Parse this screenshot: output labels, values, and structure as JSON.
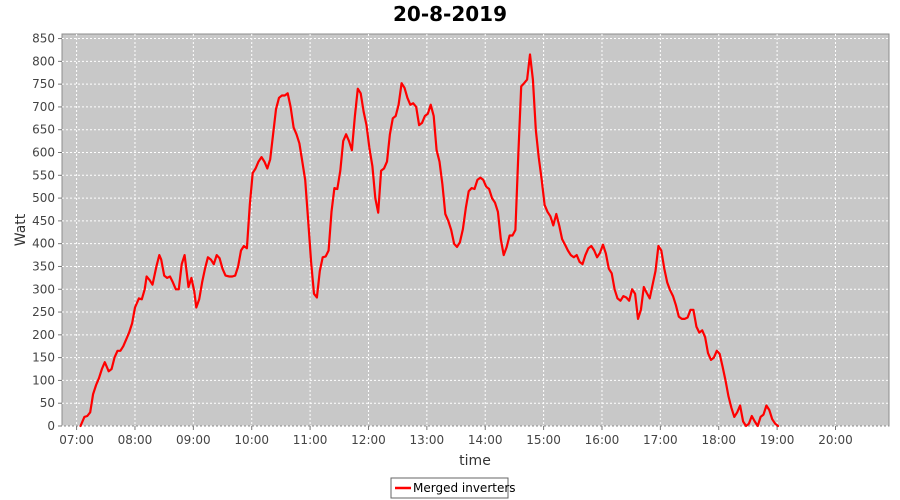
{
  "chart_data": {
    "type": "line",
    "title": "20-8-2019",
    "xlabel": "time",
    "ylabel": "Watt",
    "x_ticks": [
      "07:00",
      "08:00",
      "09:00",
      "10:00",
      "11:00",
      "12:00",
      "13:00",
      "14:00",
      "15:00",
      "16:00",
      "17:00",
      "18:00",
      "19:00",
      "20:00"
    ],
    "y_ticks": [
      0,
      50,
      100,
      150,
      200,
      250,
      300,
      350,
      400,
      450,
      500,
      550,
      600,
      650,
      700,
      750,
      800,
      850
    ],
    "xlim": [
      "06:45",
      "20:55"
    ],
    "ylim": [
      0,
      860
    ],
    "grid": true,
    "legend_position": "bottom-center",
    "background_color": "#c8c8c8",
    "series": [
      {
        "name": "Merged inverters",
        "color": "#ff0000",
        "points": [
          [
            "07:04",
            0
          ],
          [
            "07:08",
            20
          ],
          [
            "07:11",
            22
          ],
          [
            "07:14",
            30
          ],
          [
            "07:17",
            70
          ],
          [
            "07:20",
            90
          ],
          [
            "07:23",
            105
          ],
          [
            "07:26",
            125
          ],
          [
            "07:29",
            140
          ],
          [
            "07:33",
            120
          ],
          [
            "07:36",
            125
          ],
          [
            "07:39",
            150
          ],
          [
            "07:42",
            165
          ],
          [
            "07:45",
            165
          ],
          [
            "07:48",
            175
          ],
          [
            "07:51",
            190
          ],
          [
            "07:54",
            205
          ],
          [
            "07:57",
            225
          ],
          [
            "08:00",
            260
          ],
          [
            "08:04",
            280
          ],
          [
            "08:07",
            278
          ],
          [
            "08:10",
            300
          ],
          [
            "08:12",
            328
          ],
          [
            "08:15",
            320
          ],
          [
            "08:18",
            310
          ],
          [
            "08:22",
            350
          ],
          [
            "08:25",
            375
          ],
          [
            "08:27",
            365
          ],
          [
            "08:30",
            330
          ],
          [
            "08:33",
            325
          ],
          [
            "08:36",
            328
          ],
          [
            "08:39",
            315
          ],
          [
            "08:42",
            300
          ],
          [
            "08:45",
            300
          ],
          [
            "08:48",
            355
          ],
          [
            "08:51",
            375
          ],
          [
            "08:55",
            305
          ],
          [
            "08:58",
            325
          ],
          [
            "09:01",
            295
          ],
          [
            "09:03",
            260
          ],
          [
            "09:06",
            278
          ],
          [
            "09:09",
            315
          ],
          [
            "09:12",
            345
          ],
          [
            "09:15",
            370
          ],
          [
            "09:18",
            365
          ],
          [
            "09:21",
            355
          ],
          [
            "09:24",
            375
          ],
          [
            "09:27",
            368
          ],
          [
            "09:30",
            345
          ],
          [
            "09:33",
            330
          ],
          [
            "09:37",
            328
          ],
          [
            "09:40",
            328
          ],
          [
            "09:43",
            330
          ],
          [
            "09:46",
            350
          ],
          [
            "09:49",
            385
          ],
          [
            "09:52",
            395
          ],
          [
            "09:55",
            390
          ],
          [
            "09:58",
            485
          ],
          [
            "10:01",
            555
          ],
          [
            "10:04",
            565
          ],
          [
            "10:07",
            580
          ],
          [
            "10:10",
            590
          ],
          [
            "10:13",
            580
          ],
          [
            "10:16",
            565
          ],
          [
            "10:19",
            585
          ],
          [
            "10:22",
            640
          ],
          [
            "10:25",
            695
          ],
          [
            "10:28",
            720
          ],
          [
            "10:31",
            725
          ],
          [
            "10:34",
            725
          ],
          [
            "10:37",
            730
          ],
          [
            "10:40",
            700
          ],
          [
            "10:43",
            655
          ],
          [
            "10:46",
            640
          ],
          [
            "10:49",
            620
          ],
          [
            "10:52",
            580
          ],
          [
            "10:55",
            540
          ],
          [
            "10:58",
            450
          ],
          [
            "11:01",
            360
          ],
          [
            "11:04",
            290
          ],
          [
            "11:07",
            282
          ],
          [
            "11:10",
            340
          ],
          [
            "11:13",
            370
          ],
          [
            "11:16",
            372
          ],
          [
            "11:19",
            385
          ],
          [
            "11:22",
            470
          ],
          [
            "11:25",
            522
          ],
          [
            "11:28",
            520
          ],
          [
            "11:31",
            560
          ],
          [
            "11:34",
            625
          ],
          [
            "11:37",
            640
          ],
          [
            "11:40",
            625
          ],
          [
            "11:43",
            605
          ],
          [
            "11:46",
            680
          ],
          [
            "11:49",
            740
          ],
          [
            "11:52",
            730
          ],
          [
            "11:55",
            690
          ],
          [
            "11:58",
            660
          ],
          [
            "12:01",
            610
          ],
          [
            "12:04",
            570
          ],
          [
            "12:07",
            500
          ],
          [
            "12:10",
            468
          ],
          [
            "12:13",
            560
          ],
          [
            "12:16",
            565
          ],
          [
            "12:19",
            580
          ],
          [
            "12:22",
            640
          ],
          [
            "12:25",
            675
          ],
          [
            "12:28",
            680
          ],
          [
            "12:31",
            705
          ],
          [
            "12:34",
            752
          ],
          [
            "12:37",
            742
          ],
          [
            "12:40",
            720
          ],
          [
            "12:43",
            705
          ],
          [
            "12:46",
            708
          ],
          [
            "12:49",
            700
          ],
          [
            "12:52",
            660
          ],
          [
            "12:55",
            665
          ],
          [
            "12:58",
            680
          ],
          [
            "13:01",
            685
          ],
          [
            "13:04",
            705
          ],
          [
            "13:07",
            680
          ],
          [
            "13:10",
            605
          ],
          [
            "13:13",
            580
          ],
          [
            "13:16",
            530
          ],
          [
            "13:19",
            465
          ],
          [
            "13:22",
            450
          ],
          [
            "13:25",
            430
          ],
          [
            "13:28",
            400
          ],
          [
            "13:31",
            393
          ],
          [
            "13:34",
            403
          ],
          [
            "13:37",
            432
          ],
          [
            "13:40",
            478
          ],
          [
            "13:43",
            515
          ],
          [
            "13:46",
            522
          ],
          [
            "13:49",
            520
          ],
          [
            "13:52",
            540
          ],
          [
            "13:55",
            545
          ],
          [
            "13:58",
            540
          ],
          [
            "14:01",
            525
          ],
          [
            "14:04",
            520
          ],
          [
            "14:07",
            500
          ],
          [
            "14:10",
            490
          ],
          [
            "14:13",
            470
          ],
          [
            "14:16",
            410
          ],
          [
            "14:19",
            375
          ],
          [
            "14:22",
            392
          ],
          [
            "14:25",
            418
          ],
          [
            "14:28",
            418
          ],
          [
            "14:31",
            430
          ],
          [
            "14:34",
            595
          ],
          [
            "14:37",
            745
          ],
          [
            "14:40",
            752
          ],
          [
            "14:43",
            760
          ],
          [
            "14:46",
            815
          ],
          [
            "14:49",
            760
          ],
          [
            "14:52",
            650
          ],
          [
            "14:55",
            590
          ],
          [
            "14:58",
            540
          ],
          [
            "15:01",
            485
          ],
          [
            "15:04",
            470
          ],
          [
            "15:07",
            460
          ],
          [
            "15:10",
            440
          ],
          [
            "15:13",
            465
          ],
          [
            "15:16",
            440
          ],
          [
            "15:19",
            410
          ],
          [
            "15:22",
            398
          ],
          [
            "15:25",
            385
          ],
          [
            "15:28",
            375
          ],
          [
            "15:31",
            370
          ],
          [
            "15:34",
            375
          ],
          [
            "15:37",
            360
          ],
          [
            "15:40",
            355
          ],
          [
            "15:43",
            375
          ],
          [
            "15:46",
            390
          ],
          [
            "15:49",
            395
          ],
          [
            "15:52",
            385
          ],
          [
            "15:55",
            370
          ],
          [
            "15:58",
            380
          ],
          [
            "16:01",
            398
          ],
          [
            "16:04",
            378
          ],
          [
            "16:07",
            345
          ],
          [
            "16:10",
            335
          ],
          [
            "16:13",
            300
          ],
          [
            "16:16",
            280
          ],
          [
            "16:19",
            275
          ],
          [
            "16:22",
            285
          ],
          [
            "16:25",
            282
          ],
          [
            "16:28",
            275
          ],
          [
            "16:31",
            300
          ],
          [
            "16:34",
            290
          ],
          [
            "16:37",
            235
          ],
          [
            "16:40",
            255
          ],
          [
            "16:43",
            305
          ],
          [
            "16:46",
            292
          ],
          [
            "16:49",
            280
          ],
          [
            "16:52",
            310
          ],
          [
            "16:55",
            340
          ],
          [
            "16:58",
            395
          ],
          [
            "17:01",
            385
          ],
          [
            "17:04",
            345
          ],
          [
            "17:07",
            315
          ],
          [
            "17:10",
            298
          ],
          [
            "17:13",
            285
          ],
          [
            "17:16",
            265
          ],
          [
            "17:19",
            240
          ],
          [
            "17:22",
            235
          ],
          [
            "17:25",
            235
          ],
          [
            "17:28",
            238
          ],
          [
            "17:31",
            255
          ],
          [
            "17:34",
            255
          ],
          [
            "17:37",
            218
          ],
          [
            "17:40",
            205
          ],
          [
            "17:43",
            210
          ],
          [
            "17:46",
            195
          ],
          [
            "17:49",
            160
          ],
          [
            "17:52",
            145
          ],
          [
            "17:55",
            150
          ],
          [
            "17:58",
            165
          ],
          [
            "18:01",
            158
          ],
          [
            "18:04",
            130
          ],
          [
            "18:07",
            100
          ],
          [
            "18:10",
            65
          ],
          [
            "18:13",
            40
          ],
          [
            "18:16",
            20
          ],
          [
            "18:19",
            30
          ],
          [
            "18:22",
            45
          ],
          [
            "18:25",
            10
          ],
          [
            "18:28",
            0
          ],
          [
            "18:31",
            5
          ],
          [
            "18:34",
            22
          ],
          [
            "18:37",
            10
          ],
          [
            "18:40",
            0
          ],
          [
            "18:43",
            20
          ],
          [
            "18:46",
            25
          ],
          [
            "18:49",
            45
          ],
          [
            "18:52",
            35
          ],
          [
            "18:55",
            15
          ],
          [
            "18:58",
            5
          ],
          [
            "19:01",
            0
          ]
        ]
      }
    ]
  }
}
